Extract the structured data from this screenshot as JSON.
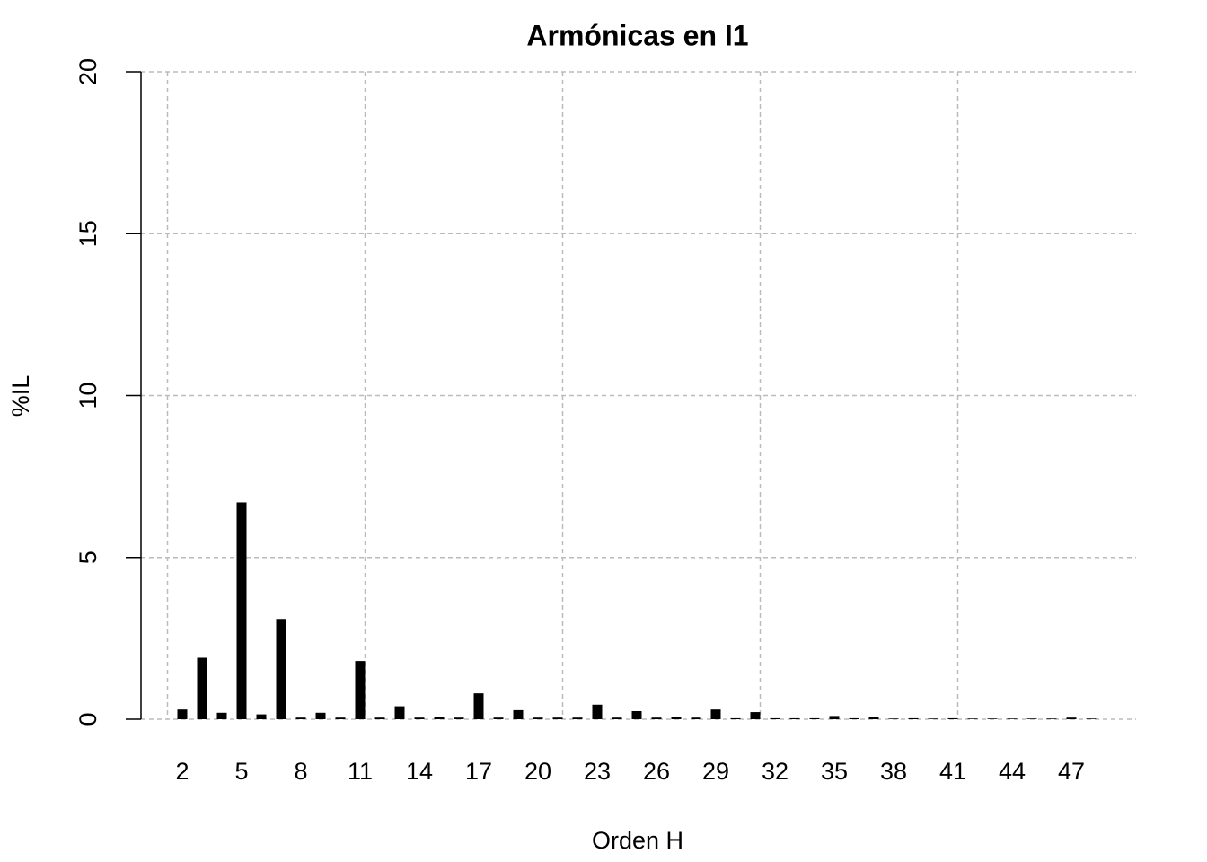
{
  "chart_data": {
    "type": "bar",
    "title": "Armónicas en I1",
    "x_label": "Orden H",
    "y_label": "%IL",
    "categories": [
      "2",
      null,
      null,
      "5",
      null,
      null,
      "8",
      null,
      null,
      "11",
      null,
      null,
      "14",
      null,
      null,
      "17",
      null,
      null,
      "20",
      null,
      null,
      "23",
      null,
      null,
      "26",
      null,
      null,
      "29",
      null,
      null,
      "32",
      null,
      null,
      "35",
      null,
      null,
      "38",
      null,
      null,
      "41",
      null,
      null,
      "44",
      null,
      null,
      "47",
      null
    ],
    "values": [
      0.3,
      1.9,
      0.2,
      6.7,
      0.15,
      3.1,
      0.05,
      0.2,
      0.05,
      1.8,
      0.05,
      0.4,
      0.05,
      0.08,
      0.05,
      0.8,
      0.05,
      0.28,
      0.05,
      0.05,
      0.05,
      0.45,
      0.05,
      0.25,
      0.05,
      0.08,
      0.05,
      0.3,
      0.03,
      0.22,
      0.03,
      0.03,
      0.03,
      0.1,
      0.03,
      0.06,
      0.02,
      0.03,
      0.02,
      0.03,
      0.02,
      0.02,
      0.02,
      0.02,
      0.02,
      0.05,
      0.02
    ],
    "color": "#000000",
    "ylim": [
      0,
      20
    ],
    "yticks": [
      0,
      5,
      10,
      15,
      20
    ],
    "grid": true
  }
}
